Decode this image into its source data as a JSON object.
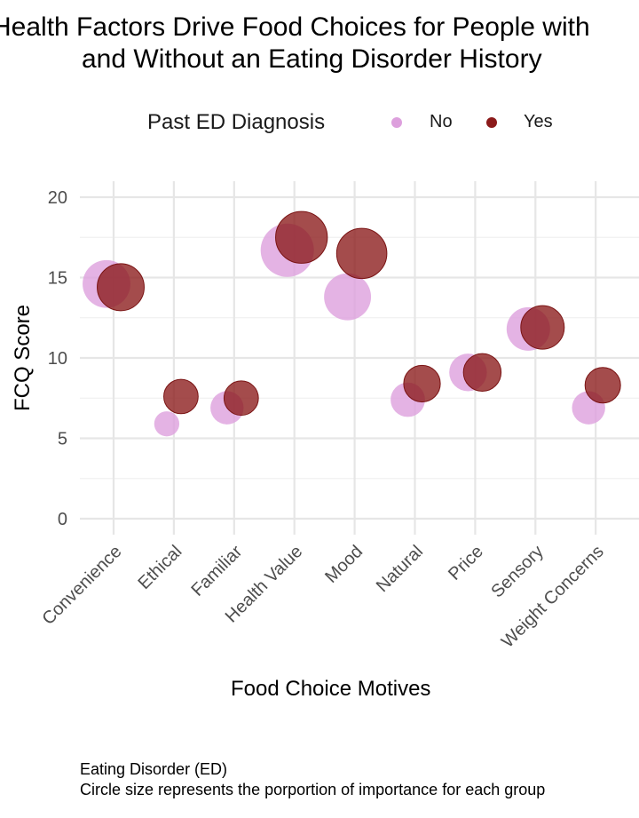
{
  "title": {
    "line1": "Health Factors Drive Food Choices for People with",
    "line2": "and Without an Eating Disorder History"
  },
  "legend": {
    "title": "Past ED Diagnosis",
    "items": [
      {
        "label": "No",
        "color": "#dda0dd"
      },
      {
        "label": "Yes",
        "color": "#8b1a1a"
      }
    ]
  },
  "caption": {
    "line1": "Eating Disorder (ED)",
    "line2": "Circle size represents the porportion of importance for each group"
  },
  "chart_data": {
    "type": "scatter",
    "xlabel": "Food Choice Motives",
    "ylabel": "FCQ Score",
    "ylim": [
      0,
      20
    ],
    "yticks": [
      0,
      5,
      10,
      15,
      20
    ],
    "grid": true,
    "legend_position": "top",
    "categories": [
      "Convenience",
      "Ethical",
      "Familiar",
      "Health Value",
      "Mood",
      "Natural",
      "Price",
      "Sensory",
      "Weight Concerns"
    ],
    "series": [
      {
        "name": "No",
        "color": "#dda0dd",
        "values": [
          14.6,
          5.9,
          6.9,
          16.7,
          13.8,
          7.4,
          9.1,
          11.8,
          6.9
        ],
        "sizes": [
          0.145,
          0.04,
          0.07,
          0.18,
          0.14,
          0.075,
          0.09,
          0.12,
          0.07
        ]
      },
      {
        "name": "Yes",
        "color": "#8b1a1a",
        "values": [
          14.4,
          7.6,
          7.5,
          17.5,
          16.5,
          8.4,
          9.1,
          11.9,
          8.3
        ],
        "sizes": [
          0.14,
          0.075,
          0.075,
          0.17,
          0.16,
          0.085,
          0.09,
          0.12,
          0.08
        ]
      }
    ]
  }
}
